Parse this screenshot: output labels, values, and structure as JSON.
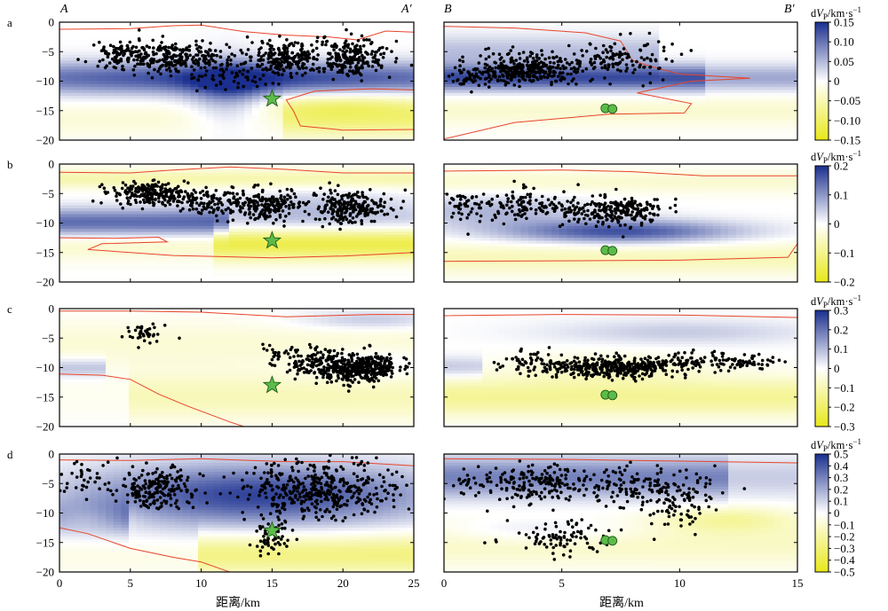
{
  "chart_data": {
    "type": "heatmap",
    "description_fields": "velocity perturbation cross-sections A–A′ and B–B′ with earthquake hypocenters",
    "xlabel": "距离/km",
    "colorbar_title": "dV",
    "colorbar_subscript": "P",
    "colorbar_unit": "/km·s",
    "colorbar_exponent": "−1",
    "colormap": {
      "positive": "#1a2f8f",
      "zero": "#ffffff",
      "negative": "#e8e81a"
    },
    "contour_color": "#e8442a",
    "section_labels": {
      "A": "A",
      "A_prime": "A′",
      "B": "B",
      "B_prime": "B′"
    },
    "panels": {
      "A": {
        "xlim": [
          0,
          25
        ],
        "xticks": [
          "0",
          "5",
          "10",
          "15",
          "20",
          "25"
        ],
        "xtick_values": [
          0,
          5,
          10,
          15,
          20,
          25
        ]
      },
      "B": {
        "xlim": [
          0,
          15
        ],
        "xticks": [
          "0",
          "5",
          "10",
          "15"
        ],
        "xtick_values": [
          0,
          5,
          10,
          15
        ]
      }
    },
    "ylim": [
      -20,
      0
    ],
    "yticks": [
      "0",
      "−5",
      "−10",
      "−15",
      "−20"
    ],
    "ytick_values": [
      0,
      -5,
      -10,
      -15,
      -20
    ],
    "mainshock_A": {
      "x": 15.0,
      "y": -13.0
    },
    "stations_B": [
      {
        "x": 6.85,
        "y": -14.6
      },
      {
        "x": 7.15,
        "y": -14.7
      }
    ],
    "rows": [
      {
        "label": "a",
        "cbar_ticks": [
          "0.15",
          "0.10",
          "0.05",
          "0",
          "−0.05",
          "−0.10",
          "−0.15"
        ],
        "cbar_values": [
          0.15,
          0.1,
          0.05,
          0,
          -0.05,
          -0.1,
          -0.15
        ],
        "cbar_range": [
          -0.15,
          0.15
        ]
      },
      {
        "label": "b",
        "cbar_ticks": [
          "0.2",
          "0.1",
          "0",
          "−0.1",
          "−0.2"
        ],
        "cbar_values": [
          0.2,
          0.1,
          0,
          -0.1,
          -0.2
        ],
        "cbar_range": [
          -0.2,
          0.2
        ]
      },
      {
        "label": "c",
        "cbar_ticks": [
          "0.3",
          "0.2",
          "0.1",
          "0",
          "−0.1",
          "−0.2",
          "−0.3"
        ],
        "cbar_values": [
          0.3,
          0.2,
          0.1,
          0,
          -0.1,
          -0.2,
          -0.3
        ],
        "cbar_range": [
          -0.3,
          0.3
        ]
      },
      {
        "label": "d",
        "cbar_ticks": [
          "0.5",
          "0.4",
          "0.3",
          "0.2",
          "0.1",
          "0",
          "−0.1",
          "−0.2",
          "−0.3",
          "−0.4",
          "−0.5"
        ],
        "cbar_values": [
          0.5,
          0.4,
          0.3,
          0.2,
          0.1,
          0,
          -0.1,
          -0.2,
          -0.3,
          -0.4,
          -0.5
        ],
        "cbar_range": [
          -0.5,
          0.5
        ]
      }
    ]
  }
}
